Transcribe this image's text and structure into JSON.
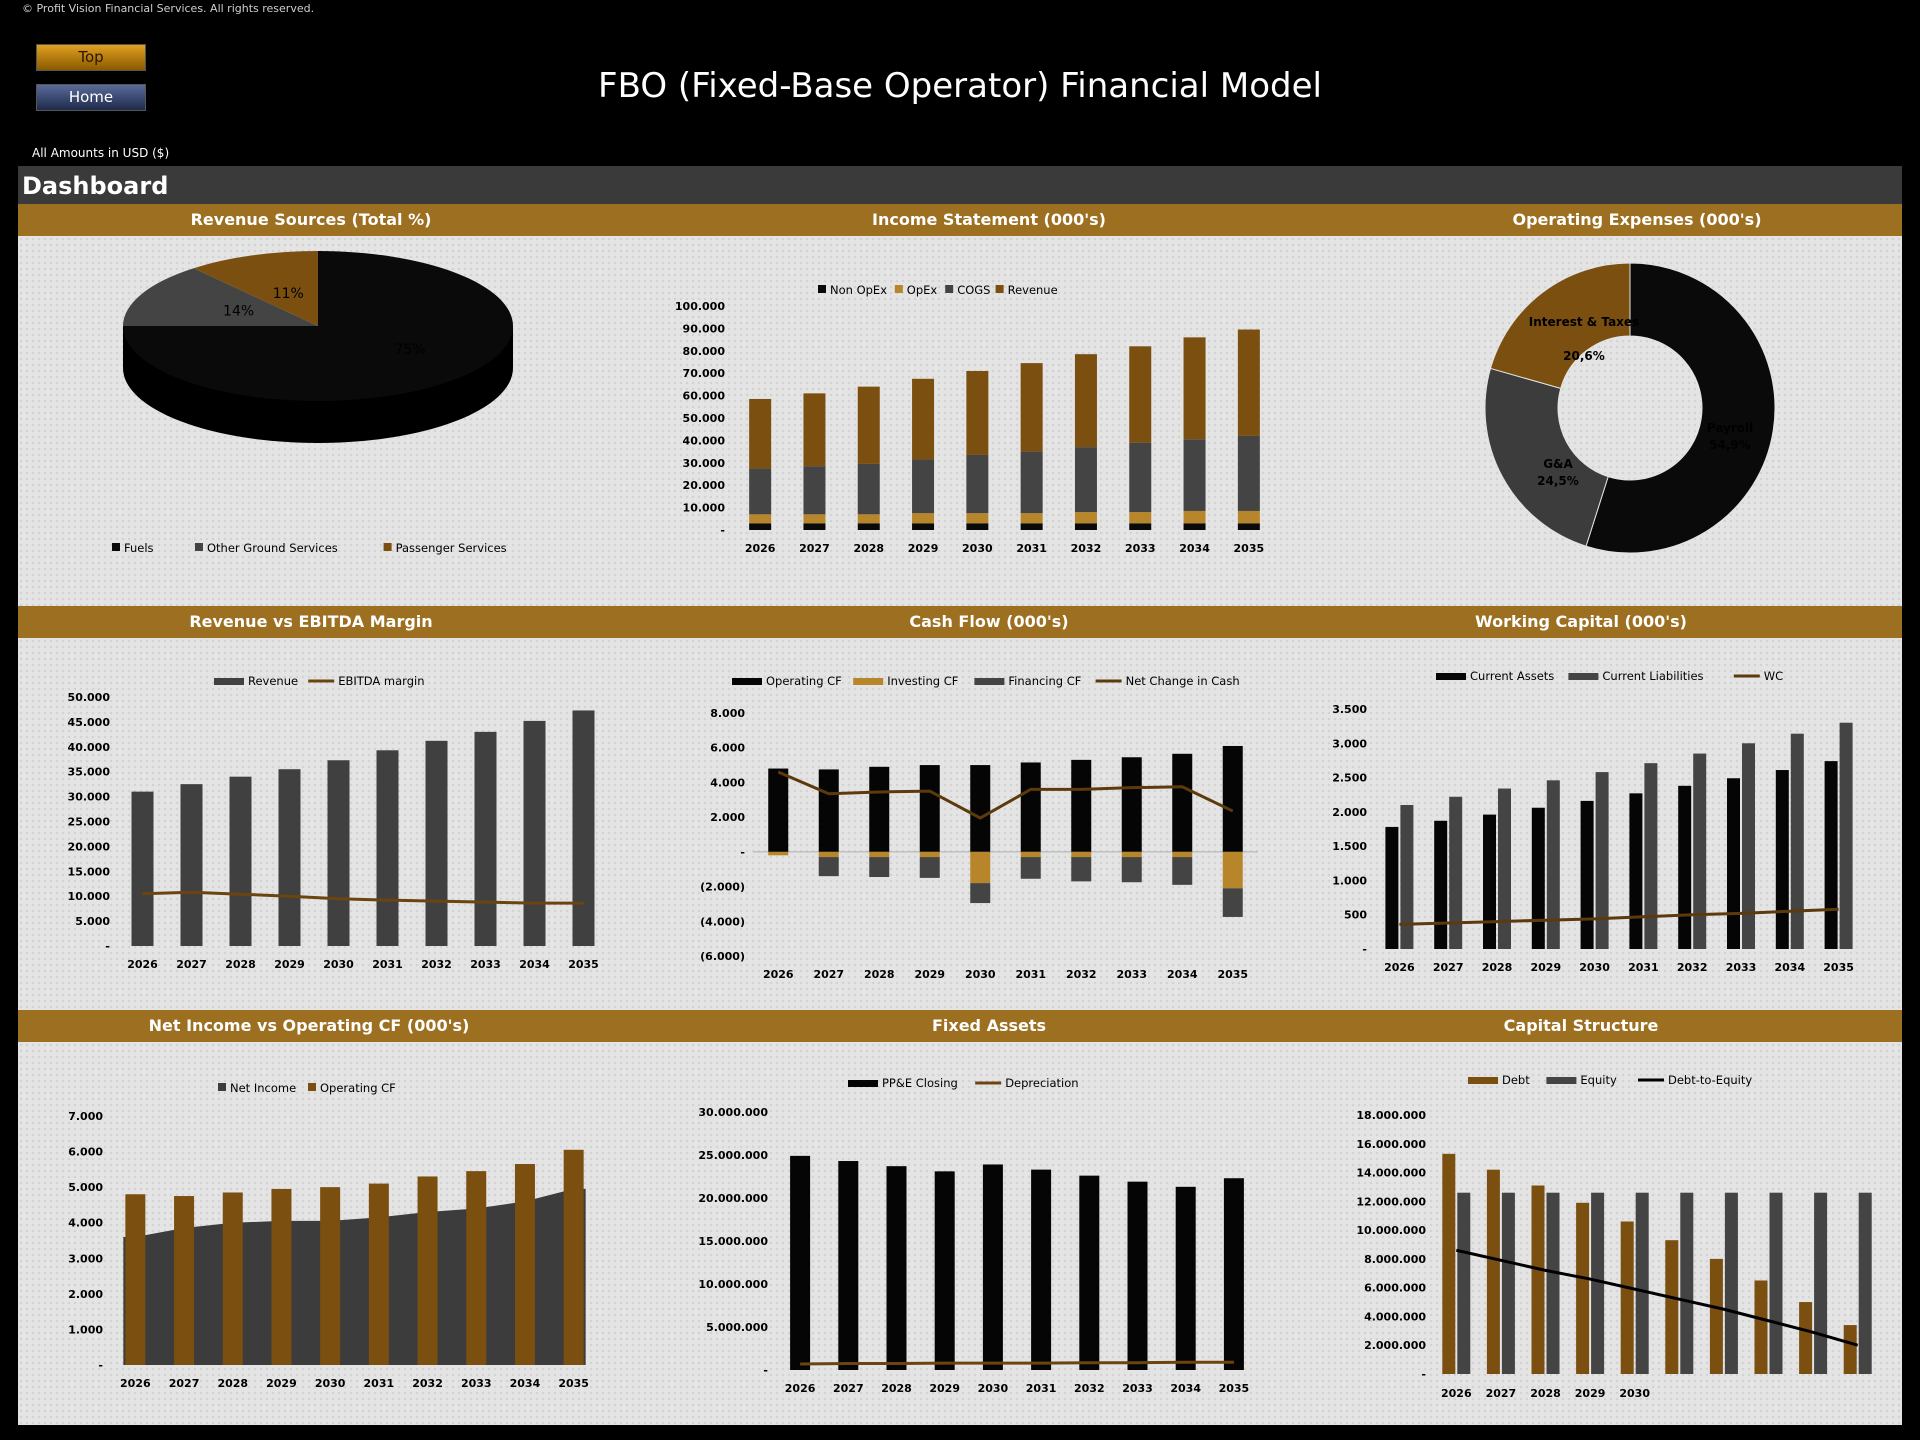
{
  "copyright": "© Profit Vision Financial Services. All rights reserved.",
  "nav": {
    "top_label": "Top",
    "home_label": "Home"
  },
  "title": "FBO (Fixed-Base Operator) Financial Model",
  "amounts_note": "All Amounts in  USD ($)",
  "dashboard_title": "Dashboard",
  "colors": {
    "black": "#050505",
    "gray": "#444444",
    "gold": "#7a4f10",
    "gold_light": "#b8862a",
    "band": "#9d6f21"
  },
  "years": [
    "2026",
    "2027",
    "2028",
    "2029",
    "2030",
    "2031",
    "2032",
    "2033",
    "2034",
    "2035"
  ],
  "chart_data": [
    {
      "id": "revenue_sources",
      "type": "pie",
      "title": "Revenue Sources (Total %)",
      "labels": [
        "Fuels",
        "Other Ground Services",
        "Passenger Services"
      ],
      "values": [
        75,
        14,
        11
      ],
      "display": [
        "75%",
        "14%",
        "11%"
      ]
    },
    {
      "id": "income_statement",
      "type": "bar",
      "stacked": true,
      "title": "Income Statement (000's)",
      "categories": [
        "2026",
        "2027",
        "2028",
        "2029",
        "2030",
        "2031",
        "2032",
        "2033",
        "2034",
        "2035"
      ],
      "series": [
        {
          "name": "Non OpEx",
          "values": [
            3000,
            3000,
            3000,
            3000,
            3000,
            3000,
            3000,
            3000,
            3000,
            3000
          ]
        },
        {
          "name": "OpEx",
          "values": [
            4000,
            4000,
            4000,
            4500,
            4500,
            4500,
            5000,
            5000,
            5500,
            5500
          ]
        },
        {
          "name": "COGS",
          "values": [
            20500,
            21500,
            22500,
            24000,
            26000,
            27500,
            29000,
            31000,
            32000,
            33500
          ]
        },
        {
          "name": "Revenue",
          "values": [
            31000,
            32500,
            34500,
            36000,
            37500,
            39500,
            41500,
            43000,
            45500,
            47500
          ]
        }
      ],
      "yticks": [
        "-",
        "10.000",
        "20.000",
        "30.000",
        "40.000",
        "50.000",
        "60.000",
        "70.000",
        "80.000",
        "90.000",
        "100.000"
      ],
      "ylim": [
        0,
        100000
      ]
    },
    {
      "id": "operating_expenses",
      "type": "pie",
      "donut": true,
      "title": "Operating Expenses (000's)",
      "labels": [
        "Payroll",
        "G&A",
        "Interest & Taxes"
      ],
      "values": [
        54.9,
        24.5,
        20.6
      ],
      "display": [
        "54,9%",
        "24,5%",
        "20,6%"
      ]
    },
    {
      "id": "revenue_vs_ebitda",
      "type": "bar",
      "title": "Revenue vs EBITDA Margin",
      "categories": [
        "2026",
        "2027",
        "2028",
        "2029",
        "2030",
        "2031",
        "2032",
        "2033",
        "2034",
        "2035"
      ],
      "series": [
        {
          "name": "Revenue",
          "values": [
            31000,
            32500,
            34000,
            35500,
            37300,
            39300,
            41200,
            43000,
            45200,
            47300
          ]
        },
        {
          "name": "EBITDA margin",
          "type": "line",
          "values": [
            10500,
            10800,
            10400,
            10000,
            9500,
            9200,
            9000,
            8800,
            8600,
            8600
          ]
        }
      ],
      "yticks": [
        "-",
        "5.000",
        "10.000",
        "15.000",
        "20.000",
        "25.000",
        "30.000",
        "35.000",
        "40.000",
        "45.000",
        "50.000"
      ],
      "ylim": [
        0,
        50000
      ]
    },
    {
      "id": "cash_flow",
      "type": "bar",
      "title": "Cash Flow (000's)",
      "categories": [
        "2026",
        "2027",
        "2028",
        "2029",
        "2030",
        "2031",
        "2032",
        "2033",
        "2034",
        "2035"
      ],
      "series": [
        {
          "name": "Operating CF",
          "values": [
            4800,
            4750,
            4900,
            5000,
            5000,
            5150,
            5300,
            5450,
            5650,
            6100
          ]
        },
        {
          "name": "Investing CF",
          "values": [
            -200,
            -300,
            -300,
            -300,
            -1800,
            -300,
            -300,
            -300,
            -300,
            -2100
          ]
        },
        {
          "name": "Financing CF",
          "values": [
            0,
            -1100,
            -1150,
            -1200,
            -1150,
            -1250,
            -1400,
            -1450,
            -1600,
            -1650
          ]
        },
        {
          "name": "Net Change in Cash",
          "type": "line",
          "values": [
            4600,
            3350,
            3450,
            3500,
            1950,
            3600,
            3600,
            3700,
            3750,
            2350
          ]
        }
      ],
      "yticks": [
        "(6.000)",
        "(4.000)",
        "(2.000)",
        "-",
        "2.000",
        "4.000",
        "6.000",
        "8.000"
      ],
      "ylim": [
        -6000,
        8000
      ]
    },
    {
      "id": "working_capital",
      "type": "bar",
      "title": "Working Capital (000's)",
      "categories": [
        "2026",
        "2027",
        "2028",
        "2029",
        "2030",
        "2031",
        "2032",
        "2033",
        "2034",
        "2035"
      ],
      "series": [
        {
          "name": "Current Assets",
          "values": [
            1780,
            1870,
            1960,
            2060,
            2160,
            2270,
            2380,
            2490,
            2610,
            2740
          ]
        },
        {
          "name": "Current Liabilities",
          "values": [
            2100,
            2220,
            2340,
            2460,
            2580,
            2710,
            2850,
            3000,
            3140,
            3300
          ]
        },
        {
          "name": "WC",
          "type": "line",
          "values": [
            360,
            380,
            400,
            420,
            440,
            470,
            500,
            520,
            550,
            580
          ]
        }
      ],
      "yticks": [
        "-",
        "500",
        "1.000",
        "1.500",
        "2.000",
        "2.500",
        "3.000",
        "3.500"
      ],
      "ylim": [
        0,
        3500
      ]
    },
    {
      "id": "net_income_vs_ocf",
      "type": "bar",
      "title": "Net Income vs Operating CF (000's)",
      "categories": [
        "2026",
        "2027",
        "2028",
        "2029",
        "2030",
        "2031",
        "2032",
        "2033",
        "2034",
        "2035"
      ],
      "series": [
        {
          "name": "Net Income",
          "type": "area",
          "values": [
            3600,
            3850,
            4000,
            4050,
            4050,
            4150,
            4300,
            4400,
            4600,
            4950
          ]
        },
        {
          "name": "Operating CF",
          "values": [
            4800,
            4750,
            4850,
            4950,
            5000,
            5100,
            5300,
            5450,
            5650,
            6050
          ]
        }
      ],
      "yticks": [
        "-",
        "1.000",
        "2.000",
        "3.000",
        "4.000",
        "5.000",
        "6.000",
        "7.000"
      ],
      "ylim": [
        0,
        7000
      ]
    },
    {
      "id": "fixed_assets",
      "type": "bar",
      "title": "Fixed Assets",
      "categories": [
        "2026",
        "2027",
        "2028",
        "2029",
        "2030",
        "2031",
        "2032",
        "2033",
        "2034",
        "2035"
      ],
      "series": [
        {
          "name": "PP&E Closing",
          "values": [
            24900000,
            24300000,
            23700000,
            23100000,
            23900000,
            23300000,
            22600000,
            21900000,
            21300000,
            22300000
          ]
        },
        {
          "name": "Depreciation",
          "type": "line",
          "values": [
            700000,
            750000,
            750000,
            800000,
            800000,
            800000,
            850000,
            850000,
            900000,
            900000
          ]
        }
      ],
      "yticks": [
        "-",
        "5.000.000",
        "10.000.000",
        "15.000.000",
        "20.000.000",
        "25.000.000",
        "30.000.000"
      ],
      "ylim": [
        0,
        30000000
      ]
    },
    {
      "id": "capital_structure",
      "type": "bar",
      "title": "Capital Structure",
      "categories": [
        "2026",
        "2027",
        "2028",
        "2029",
        "2030",
        "",
        "",
        "",
        "",
        ""
      ],
      "series": [
        {
          "name": "Debt",
          "values": [
            15300000,
            14200000,
            13100000,
            11900000,
            10600000,
            9300000,
            8000000,
            6500000,
            5000000,
            3400000
          ]
        },
        {
          "name": "Equity",
          "values": [
            12600000,
            12600000,
            12600000,
            12600000,
            12600000,
            12600000,
            12600000,
            12600000,
            12600000,
            12600000
          ]
        },
        {
          "name": "Debt-to-Equity",
          "type": "line",
          "values": [
            8600000,
            7900000,
            7200000,
            6600000,
            5900000,
            5200000,
            4500000,
            3700000,
            2900000,
            2000000
          ]
        }
      ],
      "yticks": [
        "-",
        "2.000.000",
        "4.000.000",
        "6.000.000",
        "8.000.000",
        "10.000.000",
        "12.000.000",
        "14.000.000",
        "16.000.000",
        "18.000.000"
      ],
      "ylim": [
        0,
        18000000
      ]
    }
  ]
}
